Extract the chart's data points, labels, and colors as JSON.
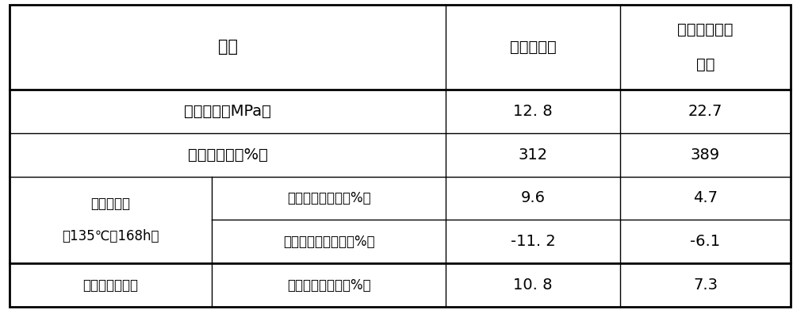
{
  "background_color": "#ffffff",
  "border_color": "#000000",
  "text_color": "#000000",
  "header": {
    "col_item": "项目",
    "col_ordinary": "普通钛辉石",
    "col_invention": "本发明改性钛\n\n辉石"
  },
  "rows": [
    {
      "col1": "拉伸强度（MPa）",
      "col1_span": true,
      "col2": "",
      "col3": "12. 8",
      "col4": "22.7"
    },
    {
      "col1": "断裂伸长率（%）",
      "col1_span": true,
      "col2": "",
      "col3": "312",
      "col4": "389"
    },
    {
      "col1": "热老化试验\n（135℃，168h）",
      "col1_span": false,
      "col2": "拉伸强度变化率（%）",
      "col3": "9.6",
      "col4": "4.7"
    },
    {
      "col1": "",
      "col1_span": false,
      "col2": "断裂伸长率变化率（%）",
      "col3": "-11. 2",
      "col4": "-6.1"
    },
    {
      "col1": "耐臭氧老化试验",
      "col1_span": false,
      "col2": "拉伸强度变化率（%）",
      "col3": "10. 8",
      "col4": "7.3"
    }
  ]
}
